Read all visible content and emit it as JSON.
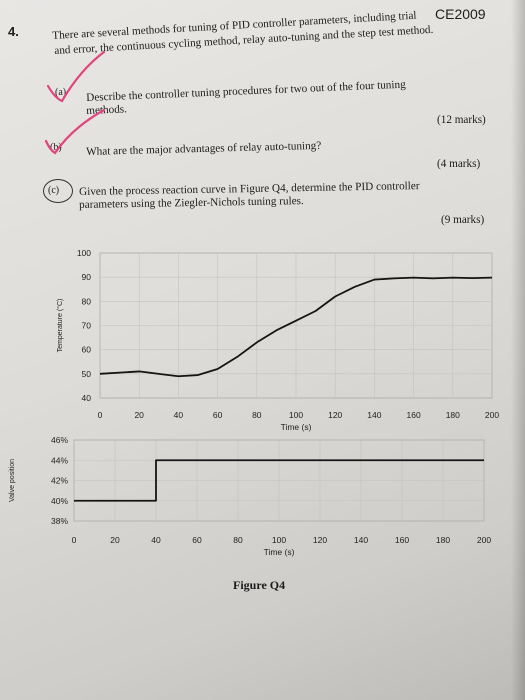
{
  "header": {
    "code": "CE2009",
    "question_number": "4."
  },
  "question": {
    "intro_line1": "There are several methods for tuning of PID controller parameters, including trial",
    "intro_line2": "and error, the continuous cycling method, relay auto-tuning and the step test method.",
    "parts": [
      {
        "label": "(a)",
        "line1": "Describe the controller tuning procedures for two out of the four tuning",
        "line2": "methods.",
        "marks": "(12 marks)"
      },
      {
        "label": "(b)",
        "line1": "What are the major advantages of relay auto-tuning?",
        "marks": "(4 marks)"
      },
      {
        "label": "(c)",
        "line1": "Given the process reaction curve in Figure Q4, determine the PID controller",
        "line2": "parameters using the Ziegler-Nichols tuning rules.",
        "marks": "(9 marks)"
      }
    ]
  },
  "figure": {
    "caption": "Figure Q4"
  },
  "annotations": {
    "pen_color": "#e0457e"
  },
  "chart_data": [
    {
      "type": "line",
      "title": "",
      "xlabel": "Time (s)",
      "ylabel": "Temperature (°C)",
      "xlim": [
        0,
        200
      ],
      "ylim": [
        40,
        100
      ],
      "x_ticks": [
        "0",
        "20",
        "40",
        "60",
        "80",
        "100",
        "120",
        "140",
        "160",
        "180",
        "200"
      ],
      "y_ticks": [
        "40",
        "50",
        "60",
        "70",
        "80",
        "90",
        "100"
      ],
      "grid": true,
      "series": [
        {
          "x": [
            0,
            10,
            20,
            30,
            40,
            50,
            60,
            70,
            80,
            90,
            100,
            110,
            120,
            130,
            140,
            150,
            160,
            170,
            180,
            190,
            200
          ],
          "y": [
            50,
            50.5,
            51,
            50,
            49,
            49.5,
            52,
            57,
            63,
            68,
            72,
            76,
            82,
            86,
            89,
            89.5,
            89.8,
            89.5,
            89.8,
            89.6,
            89.8
          ]
        }
      ]
    },
    {
      "type": "line",
      "title": "",
      "xlabel": "Time (s)",
      "ylabel": "Valve position",
      "xlim": [
        0,
        200
      ],
      "ylim": [
        38,
        46
      ],
      "x_ticks": [
        "0",
        "20",
        "40",
        "60",
        "80",
        "100",
        "120",
        "140",
        "160",
        "180",
        "200"
      ],
      "y_ticks": [
        "38%",
        "40%",
        "42%",
        "44%",
        "46%"
      ],
      "grid": true,
      "series": [
        {
          "x": [
            0,
            40,
            40,
            200
          ],
          "y": [
            40,
            40,
            44,
            44
          ]
        }
      ]
    }
  ]
}
